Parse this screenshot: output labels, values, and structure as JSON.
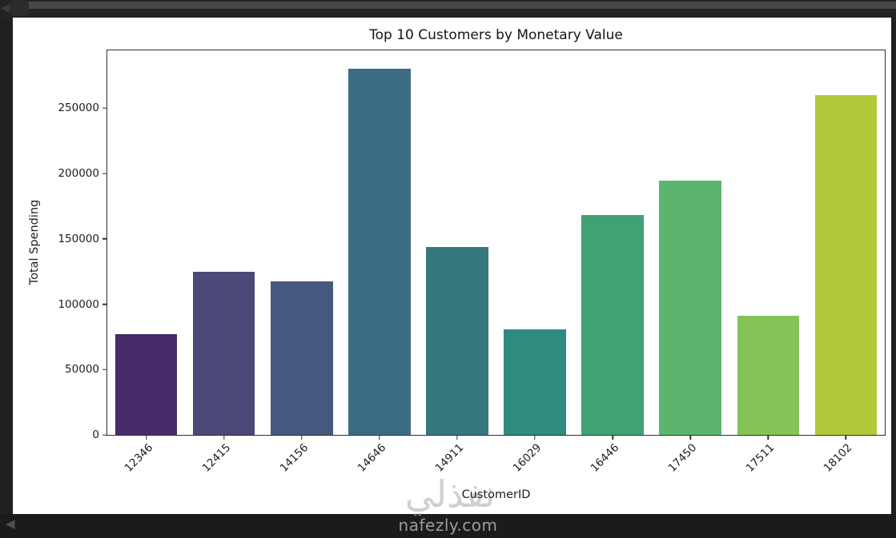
{
  "window": {
    "watermark_text": "نفذلي",
    "watermark_site": "nafezly.com"
  },
  "icons": {
    "back": "◀"
  },
  "colors": {
    "frame_bg": "#202020",
    "top_strip_bg": "#232323",
    "bottom_strip_bg": "#1b1b1b",
    "progress_track": "#474747",
    "figure_bg": "#ffffff",
    "spine": "#2e2e2e",
    "text": "#1a1a1a",
    "watermark": "#aaaaaa"
  },
  "chart_data": {
    "type": "bar",
    "title": "Top 10 Customers by Monetary Value",
    "xlabel": "CustomerID",
    "ylabel": "Total Spending",
    "categories": [
      "12346",
      "12415",
      "14156",
      "14646",
      "14911",
      "16029",
      "16446",
      "17450",
      "17511",
      "18102"
    ],
    "values": [
      77184,
      124915,
      117380,
      280206,
      143825,
      81025,
      168472,
      194551,
      91062,
      259657
    ],
    "bar_colors": [
      "#472b68",
      "#4c4878",
      "#45597f",
      "#3c6c84",
      "#35787e",
      "#2f8b7d",
      "#40a274",
      "#5cb56e",
      "#85c358",
      "#b3c838"
    ],
    "palette": "viridis",
    "yticks": [
      0,
      50000,
      100000,
      150000,
      200000,
      250000
    ],
    "ylim": [
      0,
      294200
    ],
    "bar_rel_width": 0.8,
    "xtick_rotation_deg": 45,
    "grid": false,
    "legend": null
  }
}
